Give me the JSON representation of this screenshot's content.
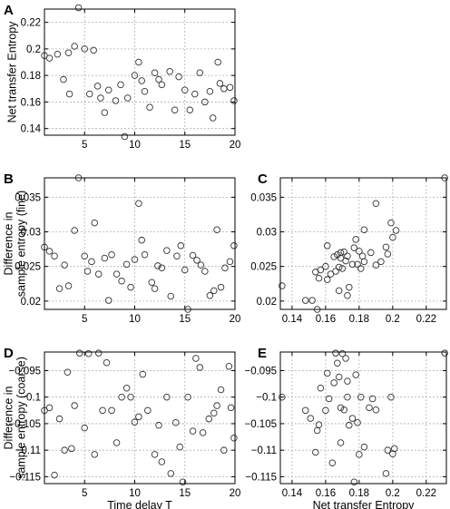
{
  "chart_data": [
    {
      "panel": "A",
      "type": "scatter",
      "xlabel": "",
      "ylabel": "Net transfer Entropy",
      "xlim": [
        1,
        20
      ],
      "ylim": [
        0.135,
        0.23
      ],
      "xticks": [
        5,
        10,
        15,
        20
      ],
      "yticks": [
        0.14,
        0.16,
        0.18,
        0.2,
        0.22
      ],
      "grid": true,
      "points": [
        [
          1,
          0.195
        ],
        [
          1.5,
          0.193
        ],
        [
          2.3,
          0.196
        ],
        [
          2.9,
          0.177
        ],
        [
          3.4,
          0.197
        ],
        [
          3.5,
          0.166
        ],
        [
          4,
          0.202
        ],
        [
          4.4,
          0.231
        ],
        [
          5,
          0.2
        ],
        [
          5.5,
          0.166
        ],
        [
          5.9,
          0.199
        ],
        [
          6.3,
          0.172
        ],
        [
          6.6,
          0.163
        ],
        [
          7,
          0.152
        ],
        [
          7.4,
          0.169
        ],
        [
          8.1,
          0.161
        ],
        [
          8.6,
          0.173
        ],
        [
          9,
          0.134
        ],
        [
          9.3,
          0.163
        ],
        [
          10,
          0.18
        ],
        [
          10.4,
          0.19
        ],
        [
          10.7,
          0.176
        ],
        [
          11,
          0.168
        ],
        [
          11.5,
          0.156
        ],
        [
          12,
          0.182
        ],
        [
          12.4,
          0.177
        ],
        [
          12.7,
          0.173
        ],
        [
          13.5,
          0.183
        ],
        [
          14,
          0.154
        ],
        [
          14.4,
          0.179
        ],
        [
          15,
          0.169
        ],
        [
          15.5,
          0.154
        ],
        [
          16,
          0.166
        ],
        [
          16.5,
          0.182
        ],
        [
          17,
          0.16
        ],
        [
          17.5,
          0.168
        ],
        [
          17.8,
          0.148
        ],
        [
          18.3,
          0.19
        ],
        [
          18.5,
          0.174
        ],
        [
          18.9,
          0.17
        ],
        [
          19.5,
          0.171
        ],
        [
          19.9,
          0.161
        ]
      ]
    },
    {
      "panel": "B",
      "type": "scatter",
      "xlabel": "",
      "ylabel": "Difference in sample entropy (fine)",
      "xlim": [
        1,
        20
      ],
      "ylim": [
        0.0188,
        0.0378
      ],
      "xticks": [
        5,
        10,
        15,
        20
      ],
      "yticks": [
        0.02,
        0.025,
        0.03,
        0.035
      ],
      "grid": true,
      "points": [
        [
          1,
          0.0278
        ],
        [
          1.5,
          0.0272
        ],
        [
          2,
          0.0265
        ],
        [
          2.5,
          0.0218
        ],
        [
          3,
          0.0252
        ],
        [
          3.4,
          0.0222
        ],
        [
          4,
          0.0302
        ],
        [
          4.4,
          0.0378
        ],
        [
          5,
          0.0265
        ],
        [
          5.3,
          0.0243
        ],
        [
          5.7,
          0.0257
        ],
        [
          6,
          0.0313
        ],
        [
          6.4,
          0.0239
        ],
        [
          7,
          0.0262
        ],
        [
          7.4,
          0.0201
        ],
        [
          7.7,
          0.0267
        ],
        [
          8.2,
          0.0239
        ],
        [
          8.7,
          0.0229
        ],
        [
          9.2,
          0.0253
        ],
        [
          9.6,
          0.022
        ],
        [
          10,
          0.026
        ],
        [
          10.4,
          0.0341
        ],
        [
          10.7,
          0.0288
        ],
        [
          11,
          0.0267
        ],
        [
          11.7,
          0.0227
        ],
        [
          12,
          0.0218
        ],
        [
          12.3,
          0.0251
        ],
        [
          12.7,
          0.0248
        ],
        [
          13.2,
          0.0273
        ],
        [
          13.6,
          0.0207
        ],
        [
          14.2,
          0.0265
        ],
        [
          14.6,
          0.028
        ],
        [
          15,
          0.0245
        ],
        [
          15.3,
          0.0188
        ],
        [
          15.8,
          0.0266
        ],
        [
          16.2,
          0.0259
        ],
        [
          16.6,
          0.0252
        ],
        [
          17,
          0.0243
        ],
        [
          17.5,
          0.0208
        ],
        [
          17.9,
          0.0215
        ],
        [
          18.2,
          0.0303
        ],
        [
          18.6,
          0.022
        ],
        [
          19,
          0.0248
        ],
        [
          19.5,
          0.0257
        ],
        [
          19.9,
          0.028
        ]
      ]
    },
    {
      "panel": "C",
      "type": "scatter",
      "xlabel": "",
      "ylabel": "",
      "xlim": [
        0.133,
        0.232
      ],
      "ylim": [
        0.0188,
        0.0378
      ],
      "xticks": [
        0.14,
        0.16,
        0.18,
        0.2,
        0.22
      ],
      "yticks": [
        0.02,
        0.025,
        0.03,
        0.035
      ],
      "grid": true,
      "points": [
        [
          0.134,
          0.0222
        ],
        [
          0.148,
          0.0201
        ],
        [
          0.152,
          0.0201
        ],
        [
          0.154,
          0.0242
        ],
        [
          0.155,
          0.0188
        ],
        [
          0.156,
          0.0233
        ],
        [
          0.157,
          0.0245
        ],
        [
          0.16,
          0.025
        ],
        [
          0.161,
          0.028
        ],
        [
          0.161,
          0.0231
        ],
        [
          0.163,
          0.0239
        ],
        [
          0.165,
          0.0264
        ],
        [
          0.166,
          0.0243
        ],
        [
          0.167,
          0.0267
        ],
        [
          0.168,
          0.0215
        ],
        [
          0.168,
          0.0249
        ],
        [
          0.169,
          0.027
        ],
        [
          0.169,
          0.0262
        ],
        [
          0.17,
          0.0247
        ],
        [
          0.171,
          0.0271
        ],
        [
          0.172,
          0.0258
        ],
        [
          0.173,
          0.0208
        ],
        [
          0.173,
          0.0265
        ],
        [
          0.174,
          0.022
        ],
        [
          0.176,
          0.0253
        ],
        [
          0.177,
          0.0277
        ],
        [
          0.178,
          0.0289
        ],
        [
          0.179,
          0.0253
        ],
        [
          0.18,
          0.0272
        ],
        [
          0.181,
          0.0247
        ],
        [
          0.182,
          0.0265
        ],
        [
          0.183,
          0.0303
        ],
        [
          0.183,
          0.0257
        ],
        [
          0.187,
          0.027
        ],
        [
          0.19,
          0.0341
        ],
        [
          0.19,
          0.0252
        ],
        [
          0.193,
          0.0257
        ],
        [
          0.196,
          0.0278
        ],
        [
          0.197,
          0.0268
        ],
        [
          0.199,
          0.0313
        ],
        [
          0.2,
          0.0292
        ],
        [
          0.202,
          0.0302
        ],
        [
          0.231,
          0.0378
        ]
      ]
    },
    {
      "panel": "D",
      "type": "scatter",
      "xlabel": "Time delay T",
      "ylabel": "Difference in sample entropy (coarse)",
      "xlim": [
        1,
        20
      ],
      "ylim": [
        -0.1163,
        -0.0915
      ],
      "xticks": [
        5,
        10,
        15,
        20
      ],
      "yticks": [
        -0.115,
        -0.11,
        -0.105,
        -0.1,
        -0.095
      ],
      "grid": true,
      "points": [
        [
          1,
          -0.1025
        ],
        [
          1.5,
          -0.102
        ],
        [
          2,
          -0.1147
        ],
        [
          2.5,
          -0.1041
        ],
        [
          3,
          -0.11
        ],
        [
          3.3,
          -0.0953
        ],
        [
          3.7,
          -0.1097
        ],
        [
          4,
          -0.1016
        ],
        [
          4.5,
          -0.0917
        ],
        [
          5,
          -0.1058
        ],
        [
          5.4,
          -0.0918
        ],
        [
          6,
          -0.1108
        ],
        [
          6.4,
          -0.0917
        ],
        [
          6.8,
          -0.1025
        ],
        [
          7.2,
          -0.0935
        ],
        [
          7.7,
          -0.1025
        ],
        [
          8.2,
          -0.1086
        ],
        [
          8.7,
          -0.1
        ],
        [
          9.2,
          -0.0983
        ],
        [
          9.6,
          -0.1
        ],
        [
          10,
          -0.1047
        ],
        [
          10.4,
          -0.1037
        ],
        [
          10.8,
          -0.0957
        ],
        [
          11.3,
          -0.1025
        ],
        [
          12,
          -0.1108
        ],
        [
          12.4,
          -0.1053
        ],
        [
          12.7,
          -0.1122
        ],
        [
          13.2,
          -0.1
        ],
        [
          13.6,
          -0.1144
        ],
        [
          14.1,
          -0.1048
        ],
        [
          14.5,
          -0.1094
        ],
        [
          14.8,
          -0.116
        ],
        [
          15.3,
          -0.1
        ],
        [
          15.8,
          -0.1064
        ],
        [
          16.1,
          -0.0927
        ],
        [
          16.5,
          -0.0944
        ],
        [
          16.8,
          -0.1067
        ],
        [
          17.4,
          -0.1041
        ],
        [
          17.9,
          -0.103
        ],
        [
          18.2,
          -0.1016
        ],
        [
          18.6,
          -0.0986
        ],
        [
          18.9,
          -0.11
        ],
        [
          19.4,
          -0.0942
        ],
        [
          19.6,
          -0.102
        ],
        [
          19.9,
          -0.1077
        ]
      ]
    },
    {
      "panel": "E",
      "type": "scatter",
      "xlabel": "Net transfer Entropy",
      "ylabel": "",
      "xlim": [
        0.133,
        0.232
      ],
      "ylim": [
        -0.1163,
        -0.0915
      ],
      "xticks": [
        0.14,
        0.16,
        0.18,
        0.2,
        0.22
      ],
      "yticks": [
        -0.115,
        -0.11,
        -0.105,
        -0.1,
        -0.095
      ],
      "grid": true,
      "points": [
        [
          0.134,
          -0.1
        ],
        [
          0.148,
          -0.1025
        ],
        [
          0.151,
          -0.104
        ],
        [
          0.154,
          -0.1104
        ],
        [
          0.155,
          -0.1063
        ],
        [
          0.156,
          -0.1052
        ],
        [
          0.157,
          -0.0983
        ],
        [
          0.16,
          -0.1025
        ],
        [
          0.161,
          -0.0955
        ],
        [
          0.162,
          -0.1003
        ],
        [
          0.164,
          -0.1124
        ],
        [
          0.165,
          -0.0973
        ],
        [
          0.166,
          -0.0917
        ],
        [
          0.167,
          -0.0936
        ],
        [
          0.168,
          -0.0962
        ],
        [
          0.169,
          -0.102
        ],
        [
          0.169,
          -0.1086
        ],
        [
          0.17,
          -0.0918
        ],
        [
          0.171,
          -0.1024
        ],
        [
          0.172,
          -0.0927
        ],
        [
          0.173,
          -0.097
        ],
        [
          0.173,
          -0.1
        ],
        [
          0.174,
          -0.1053
        ],
        [
          0.176,
          -0.104
        ],
        [
          0.177,
          -0.116
        ],
        [
          0.178,
          -0.0958
        ],
        [
          0.179,
          -0.1048
        ],
        [
          0.18,
          -0.1108
        ],
        [
          0.181,
          -0.1
        ],
        [
          0.183,
          -0.1094
        ],
        [
          0.186,
          -0.102
        ],
        [
          0.188,
          -0.1003
        ],
        [
          0.19,
          -0.1024
        ],
        [
          0.196,
          -0.1144
        ],
        [
          0.197,
          -0.11
        ],
        [
          0.199,
          -0.1
        ],
        [
          0.2,
          -0.1107
        ],
        [
          0.201,
          -0.1097
        ],
        [
          0.231,
          -0.0917
        ]
      ]
    }
  ]
}
